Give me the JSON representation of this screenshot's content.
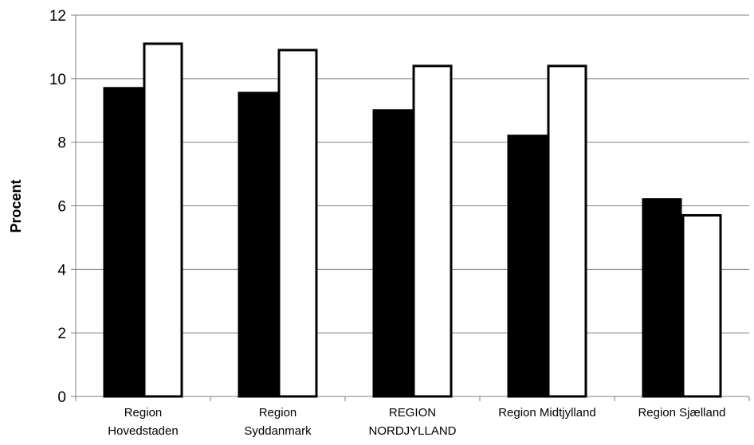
{
  "chart_data": {
    "type": "bar",
    "title": "",
    "xlabel": "",
    "ylabel": "Procent",
    "ylim": [
      0,
      12
    ],
    "yticks": [
      0,
      2,
      4,
      6,
      8,
      10,
      12
    ],
    "grid": true,
    "legend": "none",
    "categories": [
      [
        "Region",
        "Hovedstaden"
      ],
      [
        "Region",
        "Syddanmark"
      ],
      [
        "REGION",
        "NORDJYLLAND"
      ],
      [
        "Region Midtjylland"
      ],
      [
        "Region Sjælland"
      ]
    ],
    "series": [
      {
        "values": [
          9.7,
          9.55,
          9.0,
          8.2,
          6.2
        ],
        "fill": "#000000",
        "stroke": "#000000"
      },
      {
        "values": [
          11.1,
          10.9,
          10.4,
          10.4,
          5.7
        ],
        "fill": "#ffffff",
        "stroke": "#000000"
      }
    ],
    "colors": {
      "grid": "#808080",
      "axis": "#808080",
      "text": "#000000"
    }
  }
}
